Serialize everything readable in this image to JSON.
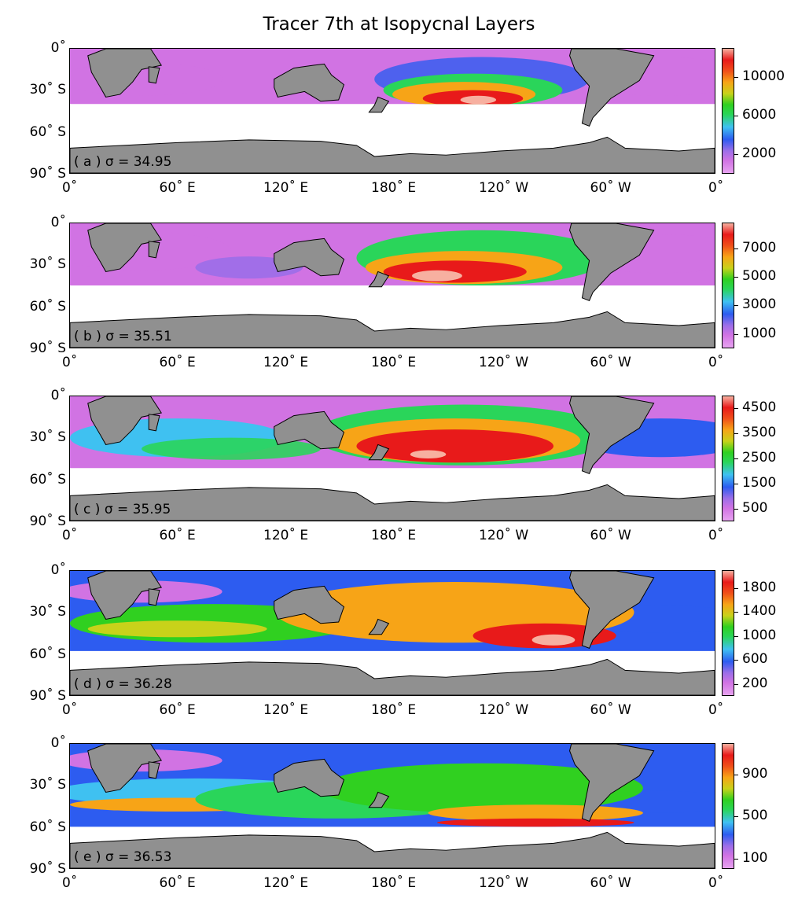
{
  "figure": {
    "title": "Tracer 7th at Isopycnal Layers"
  },
  "axes": {
    "y_ticks": [
      "0˚",
      "30˚ S",
      "60˚ S",
      "90˚ S"
    ],
    "x_ticks": [
      "0˚",
      "60˚ E",
      "120˚ E",
      "180˚ E",
      "120˚ W",
      "60˚ W",
      "0˚"
    ]
  },
  "colors": {
    "land": "#909090",
    "no_data": "#ffffff",
    "colormap": [
      "#e7a3f0",
      "#d173e3",
      "#9b6ee8",
      "#2d5cf0",
      "#3fc1f1",
      "#2ad55a",
      "#30d020",
      "#c8d21a",
      "#f7a417",
      "#f0501a",
      "#e81a1a",
      "#f7b0a0"
    ]
  },
  "panels": [
    {
      "label": "( a ) σ = 34.95",
      "colorbar": {
        "ticks": [
          "10000",
          "6000",
          "2000"
        ],
        "min": 0,
        "max": 13000,
        "tick_values": [
          10000,
          6000,
          2000
        ]
      }
    },
    {
      "label": "( b ) σ = 35.51",
      "colorbar": {
        "ticks": [
          "7000",
          "5000",
          "3000",
          "1000"
        ],
        "min": 0,
        "max": 8800,
        "tick_values": [
          7000,
          5000,
          3000,
          1000
        ]
      }
    },
    {
      "label": "( c ) σ = 35.95",
      "colorbar": {
        "ticks": [
          "4500",
          "3500",
          "2500",
          "1500",
          "500"
        ],
        "min": 0,
        "max": 5000,
        "tick_values": [
          4500,
          3500,
          2500,
          1500,
          500
        ]
      }
    },
    {
      "label": "( d ) σ = 36.28",
      "colorbar": {
        "ticks": [
          "1800",
          "1400",
          "1000",
          "600",
          "200"
        ],
        "min": 0,
        "max": 2100,
        "tick_values": [
          1800,
          1400,
          1000,
          600,
          200
        ]
      }
    },
    {
      "label": "( e ) σ = 36.53",
      "colorbar": {
        "ticks": [
          "900",
          "500",
          "100"
        ],
        "min": 0,
        "max": 1200,
        "tick_values": [
          900,
          500,
          100
        ]
      }
    }
  ],
  "chart_data": {
    "type": "heatmap",
    "title": "Tracer 7th at Isopycnal Layers",
    "x_axis": "longitude",
    "y_axis": "latitude",
    "xlim": [
      0,
      360
    ],
    "ylim": [
      -90,
      0
    ],
    "panels": [
      {
        "sigma": 34.95,
        "range": [
          0,
          13000
        ],
        "max_region": "South Pacific near 130˚ W, 35˚ S"
      },
      {
        "sigma": 35.51,
        "range": [
          0,
          8800
        ],
        "max_region": "South Pacific near 150˚ W, 35˚ S"
      },
      {
        "sigma": 35.95,
        "range": [
          0,
          5000
        ],
        "max_region": "South Pacific near 150˚ W, 35˚ S"
      },
      {
        "sigma": 36.28,
        "range": [
          0,
          2100
        ],
        "max_region": "Southeast Pacific near 80˚ W, 50˚ S"
      },
      {
        "sigma": 36.53,
        "range": [
          0,
          1200
        ],
        "max_region": "Southern Ocean band near 60˚ S"
      }
    ]
  }
}
